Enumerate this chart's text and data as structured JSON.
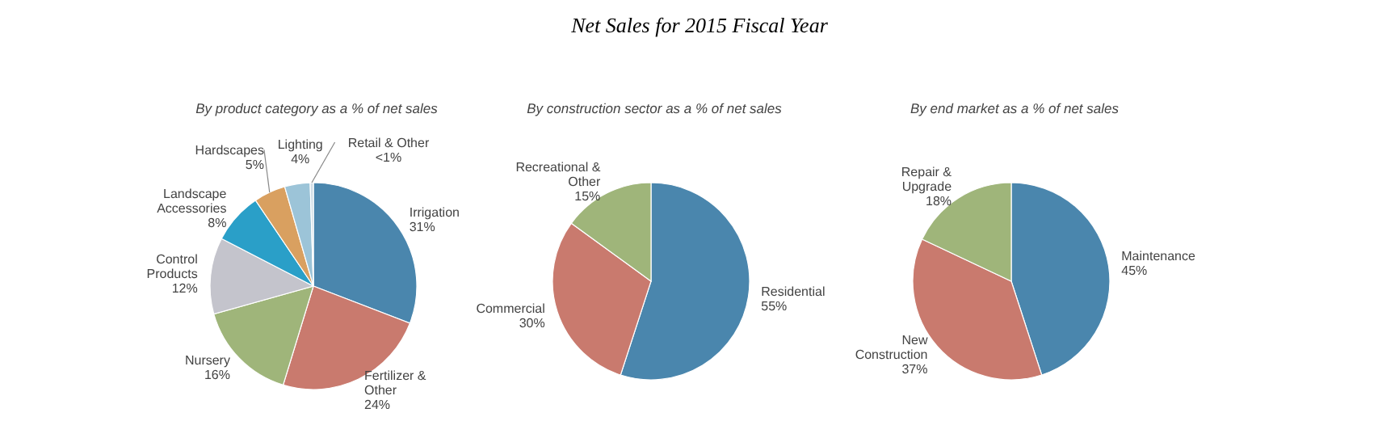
{
  "chart_data": [
    {
      "type": "pie",
      "subtitle": "By product category as a % of net sales",
      "categories": [
        "Irrigation",
        "Fertilizer & Other",
        "Nursery",
        "Control Products",
        "Landscape Accessories",
        "Hardscapes",
        "Lighting",
        "Retail & Other"
      ],
      "values": [
        31,
        24,
        16,
        12,
        8,
        5,
        4,
        0.5
      ],
      "value_labels": [
        "31%",
        "24%",
        "16%",
        "12%",
        "8%",
        "5%",
        "4%",
        "<1%"
      ],
      "colors": [
        "#4a86ad",
        "#c97a6e",
        "#9fb57a",
        "#c4c4cc",
        "#2a9fc8",
        "#d9a060",
        "#9cc4d8",
        "#d0dde6"
      ]
    },
    {
      "type": "pie",
      "title": "Net Sales for 2015 Fiscal Year",
      "subtitle": "By construction sector as a % of net sales",
      "categories": [
        "Residential",
        "Commercial",
        "Recreational & Other"
      ],
      "values": [
        55,
        30,
        15
      ],
      "value_labels": [
        "55%",
        "30%",
        "15%"
      ],
      "colors": [
        "#4a86ad",
        "#c97a6e",
        "#9fb57a"
      ]
    },
    {
      "type": "pie",
      "subtitle": "By end market as a % of net sales",
      "categories": [
        "Maintenance",
        "New Construction",
        "Repair & Upgrade"
      ],
      "values": [
        45,
        37,
        18
      ],
      "value_labels": [
        "45%",
        "37%",
        "18%"
      ],
      "colors": [
        "#4a86ad",
        "#c97a6e",
        "#9fb57a"
      ]
    }
  ]
}
